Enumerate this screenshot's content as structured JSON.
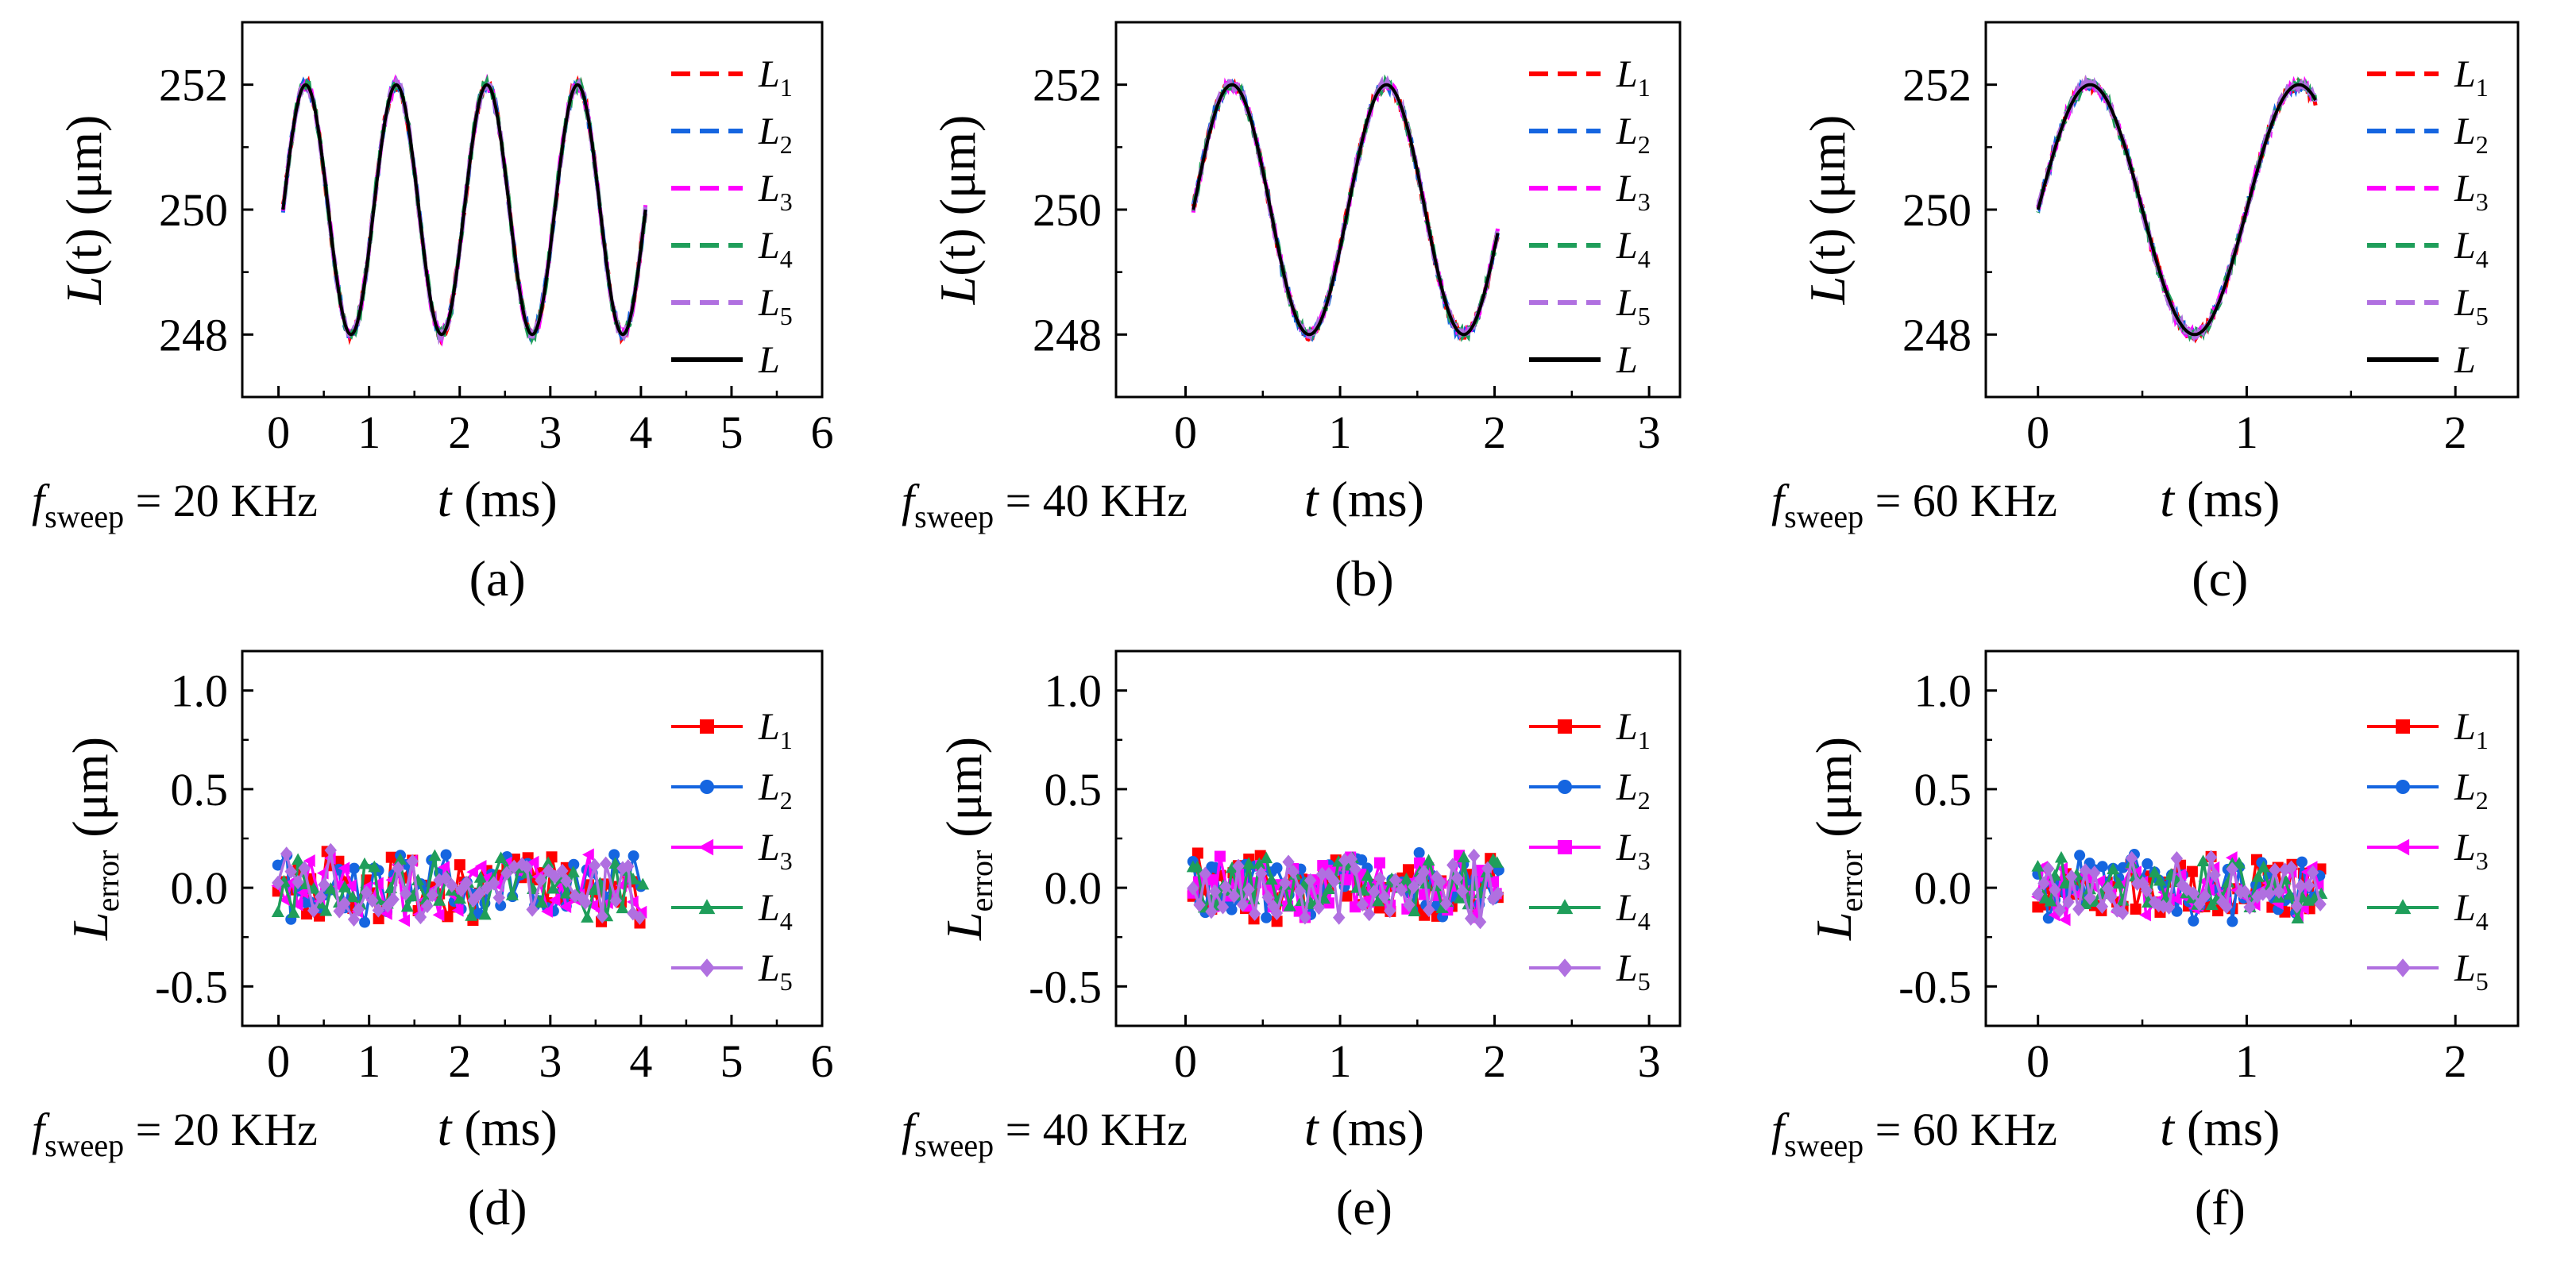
{
  "figure": {
    "panels": [
      "a",
      "b",
      "c",
      "d",
      "e",
      "f"
    ]
  },
  "chart_data": [
    {
      "id": "a",
      "type": "line",
      "caption": "(a)",
      "freq_label": {
        "var": "f",
        "sub": "sweep",
        "text": " = 20 KHz"
      },
      "xlabel": {
        "var": "t",
        "unit": " (ms)"
      },
      "ylabel": {
        "var": "L",
        "text": "(t) (μm)"
      },
      "xlim": [
        -0.4,
        6
      ],
      "ylim": [
        247,
        253
      ],
      "xticks": [
        0,
        1,
        2,
        3,
        4,
        5,
        6
      ],
      "yticks": [
        248,
        250,
        252
      ],
      "signal": {
        "kind": "sine",
        "t_start": 0.05,
        "t_end": 4.05,
        "center": 250,
        "amplitude": 2,
        "freq_per_ms": 1
      },
      "legend_style": "dash",
      "series": [
        {
          "name": "L",
          "sub": "1",
          "color": "#ff0000"
        },
        {
          "name": "L",
          "sub": "2",
          "color": "#1565e0"
        },
        {
          "name": "L",
          "sub": "3",
          "color": "#ff00ff"
        },
        {
          "name": "L",
          "sub": "4",
          "color": "#1f9e5a"
        },
        {
          "name": "L",
          "sub": "5",
          "color": "#b070e0"
        },
        {
          "name": "L",
          "sub": "",
          "color": "#000000"
        }
      ]
    },
    {
      "id": "b",
      "type": "line",
      "caption": "(b)",
      "freq_label": {
        "var": "f",
        "sub": "sweep",
        "text": " = 40 KHz"
      },
      "xlabel": {
        "var": "t",
        "unit": " (ms)"
      },
      "ylabel": {
        "var": "L",
        "text": "(t) (μm)"
      },
      "xlim": [
        -0.45,
        3.2
      ],
      "ylim": [
        247,
        253
      ],
      "xticks": [
        0,
        1,
        2,
        3
      ],
      "yticks": [
        248,
        250,
        252
      ],
      "signal": {
        "kind": "sine",
        "t_start": 0.05,
        "t_end": 2.02,
        "center": 250,
        "amplitude": 2,
        "freq_per_ms": 1
      },
      "legend_style": "dash",
      "series": [
        {
          "name": "L",
          "sub": "1",
          "color": "#ff0000"
        },
        {
          "name": "L",
          "sub": "2",
          "color": "#1565e0"
        },
        {
          "name": "L",
          "sub": "3",
          "color": "#ff00ff"
        },
        {
          "name": "L",
          "sub": "4",
          "color": "#1f9e5a"
        },
        {
          "name": "L",
          "sub": "5",
          "color": "#b070e0"
        },
        {
          "name": "L",
          "sub": "",
          "color": "#000000"
        }
      ]
    },
    {
      "id": "c",
      "type": "line",
      "caption": "(c)",
      "freq_label": {
        "var": "f",
        "sub": "sweep",
        "text": " = 60 KHz"
      },
      "xlabel": {
        "var": "t",
        "unit": " (ms)"
      },
      "ylabel": {
        "var": "L",
        "text": "(t) (μm)"
      },
      "xlim": [
        -0.25,
        2.3
      ],
      "ylim": [
        247,
        253
      ],
      "xticks": [
        0,
        1,
        2
      ],
      "yticks": [
        248,
        250,
        252
      ],
      "signal": {
        "kind": "sine",
        "t_start": 0.0,
        "t_end": 1.33,
        "center": 250,
        "amplitude": 2,
        "freq_per_ms": 1
      },
      "legend_style": "dash",
      "series": [
        {
          "name": "L",
          "sub": "1",
          "color": "#ff0000"
        },
        {
          "name": "L",
          "sub": "2",
          "color": "#1565e0"
        },
        {
          "name": "L",
          "sub": "3",
          "color": "#ff00ff"
        },
        {
          "name": "L",
          "sub": "4",
          "color": "#1f9e5a"
        },
        {
          "name": "L",
          "sub": "5",
          "color": "#b070e0"
        },
        {
          "name": "L",
          "sub": "",
          "color": "#000000"
        }
      ]
    },
    {
      "id": "d",
      "type": "line",
      "caption": "(d)",
      "freq_label": {
        "var": "f",
        "sub": "sweep",
        "text": " = 20 KHz"
      },
      "xlabel": {
        "var": "t",
        "unit": " (ms)"
      },
      "ylabel": {
        "var": "L",
        "sub": "error",
        "text": " (μm)"
      },
      "xlim": [
        -0.4,
        6
      ],
      "ylim": [
        -0.7,
        1.2
      ],
      "xticks": [
        0,
        1,
        2,
        3,
        4,
        5,
        6
      ],
      "yticks": [
        -0.5,
        0.0,
        0.5,
        1.0
      ],
      "ytick_labels": [
        "-0.5",
        "0.0",
        "0.5",
        "1.0"
      ],
      "signal": {
        "kind": "noise",
        "t_start": 0.0,
        "t_end": 4.0,
        "n_points": 55,
        "amplitude": 0.2
      },
      "legend_style": "marker",
      "series": [
        {
          "name": "L",
          "sub": "1",
          "color": "#ff0000",
          "marker": "square"
        },
        {
          "name": "L",
          "sub": "2",
          "color": "#1565e0",
          "marker": "circle"
        },
        {
          "name": "L",
          "sub": "3",
          "color": "#ff00ff",
          "marker": "triangle-left"
        },
        {
          "name": "L",
          "sub": "4",
          "color": "#1f9e5a",
          "marker": "triangle-up"
        },
        {
          "name": "L",
          "sub": "5",
          "color": "#b070e0",
          "marker": "diamond"
        }
      ]
    },
    {
      "id": "e",
      "type": "line",
      "caption": "(e)",
      "freq_label": {
        "var": "f",
        "sub": "sweep",
        "text": " = 40 KHz"
      },
      "xlabel": {
        "var": "t",
        "unit": " (ms)"
      },
      "ylabel": {
        "var": "L",
        "sub": "error",
        "text": " (μm)"
      },
      "xlim": [
        -0.45,
        3.2
      ],
      "ylim": [
        -0.7,
        1.2
      ],
      "xticks": [
        0,
        1,
        2,
        3
      ],
      "yticks": [
        -0.5,
        0.0,
        0.5,
        1.0
      ],
      "ytick_labels": [
        "-0.5",
        "0.0",
        "0.5",
        "1.0"
      ],
      "signal": {
        "kind": "noise",
        "t_start": 0.05,
        "t_end": 2.02,
        "n_points": 55,
        "amplitude": 0.2
      },
      "legend_style": "marker",
      "series": [
        {
          "name": "L",
          "sub": "1",
          "color": "#ff0000",
          "marker": "square"
        },
        {
          "name": "L",
          "sub": "2",
          "color": "#1565e0",
          "marker": "circle"
        },
        {
          "name": "L",
          "sub": "3",
          "color": "#ff00ff",
          "marker": "square"
        },
        {
          "name": "L",
          "sub": "4",
          "color": "#1f9e5a",
          "marker": "triangle-up"
        },
        {
          "name": "L",
          "sub": "5",
          "color": "#b070e0",
          "marker": "diamond"
        }
      ]
    },
    {
      "id": "f",
      "type": "line",
      "caption": "(f)",
      "freq_label": {
        "var": "f",
        "sub": "sweep",
        "text": " = 60 KHz"
      },
      "xlabel": {
        "var": "t",
        "unit": " (ms)"
      },
      "ylabel": {
        "var": "L",
        "sub": "error",
        "text": " (μm)"
      },
      "xlim": [
        -0.25,
        2.3
      ],
      "ylim": [
        -0.7,
        1.2
      ],
      "xticks": [
        0,
        1,
        2
      ],
      "yticks": [
        -0.5,
        0.0,
        0.5,
        1.0
      ],
      "ytick_labels": [
        "-0.5",
        "0.0",
        "0.5",
        "1.0"
      ],
      "signal": {
        "kind": "noise",
        "t_start": 0.0,
        "t_end": 1.35,
        "n_points": 50,
        "amplitude": 0.18
      },
      "legend_style": "marker",
      "series": [
        {
          "name": "L",
          "sub": "1",
          "color": "#ff0000",
          "marker": "square"
        },
        {
          "name": "L",
          "sub": "2",
          "color": "#1565e0",
          "marker": "circle"
        },
        {
          "name": "L",
          "sub": "3",
          "color": "#ff00ff",
          "marker": "triangle-left"
        },
        {
          "name": "L",
          "sub": "4",
          "color": "#1f9e5a",
          "marker": "triangle-up"
        },
        {
          "name": "L",
          "sub": "5",
          "color": "#b070e0",
          "marker": "diamond"
        }
      ]
    }
  ]
}
